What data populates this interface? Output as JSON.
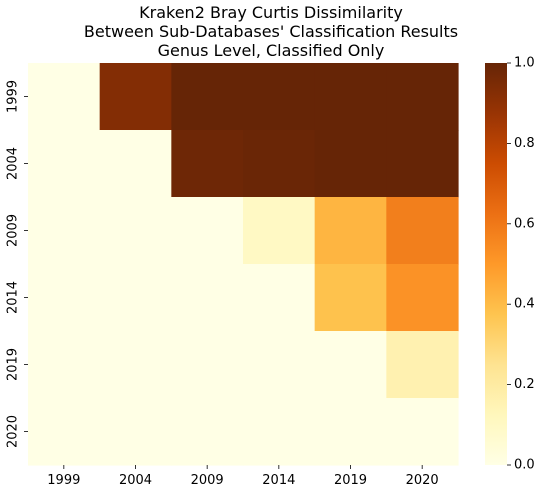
{
  "chart_data": {
    "type": "heatmap",
    "title_lines": [
      "Kraken2 Bray Curtis Dissimilarity",
      "Between Sub-Databases' Classification Results",
      "Genus Level, Classified Only"
    ],
    "x_categories": [
      "1999",
      "2004",
      "2009",
      "2014",
      "2019",
      "2020"
    ],
    "y_categories": [
      "1999",
      "2004",
      "2009",
      "2014",
      "2019",
      "2020"
    ],
    "values": [
      [
        0.0,
        0.93,
        1.0,
        1.0,
        1.0,
        1.0
      ],
      [
        0.0,
        0.0,
        0.98,
        0.99,
        1.0,
        1.0
      ],
      [
        0.0,
        0.0,
        0.0,
        0.1,
        0.42,
        0.58
      ],
      [
        0.0,
        0.0,
        0.0,
        0.0,
        0.38,
        0.52
      ],
      [
        0.0,
        0.0,
        0.0,
        0.0,
        0.0,
        0.16
      ],
      [
        0.0,
        0.0,
        0.0,
        0.0,
        0.0,
        0.0
      ]
    ],
    "vmin": 0.0,
    "vmax": 1.0,
    "colormap": "YlOrBr",
    "colorbar_ticks": [
      "0.0",
      "0.2",
      "0.4",
      "0.6",
      "0.8",
      "1.0"
    ],
    "colorbar_placement": "right"
  }
}
